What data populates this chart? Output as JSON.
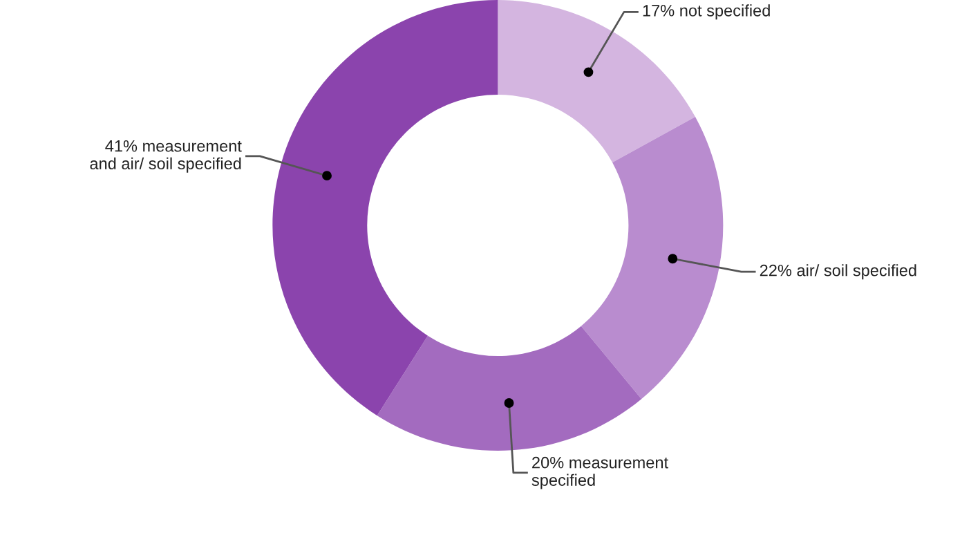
{
  "chart_data": {
    "type": "donut",
    "categories": [
      "17% not specified",
      "22% air/ soil specified",
      "20% measurement\nspecified",
      "41% measurement\nand air/ soil specified"
    ],
    "values": [
      17,
      22,
      20,
      41
    ],
    "colors": [
      "#d4b5e0",
      "#b98ccf",
      "#a36bbf",
      "#8b44ad"
    ]
  }
}
